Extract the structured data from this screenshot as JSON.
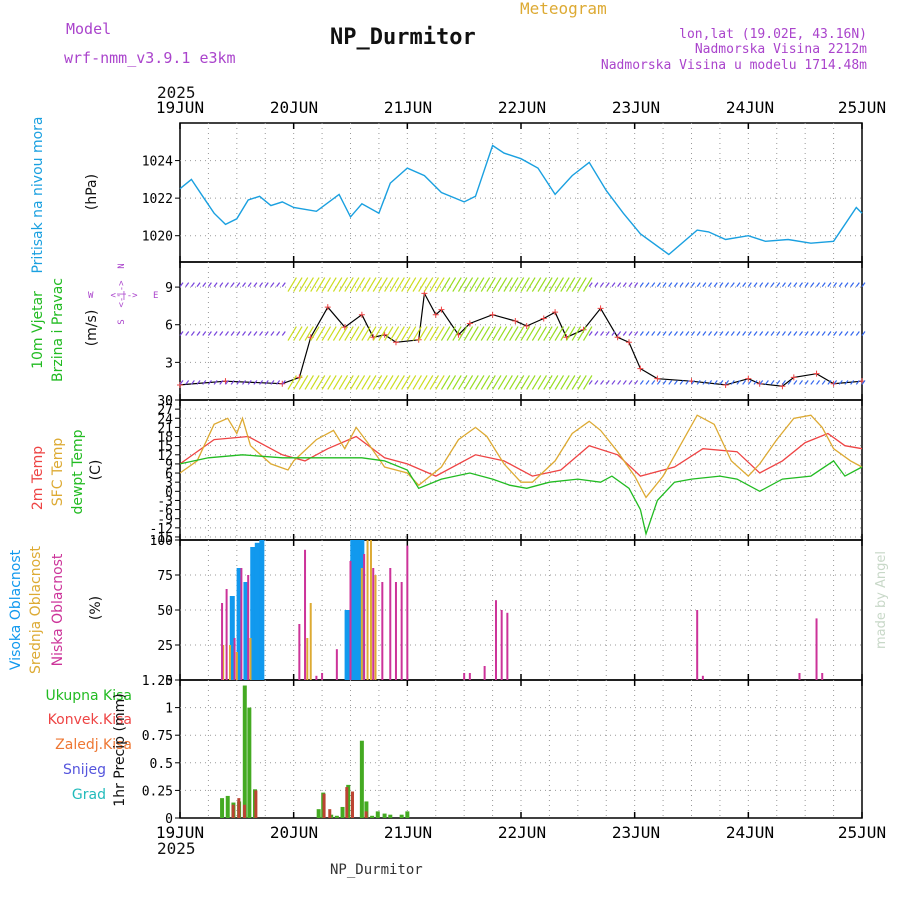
{
  "header": {
    "model_label": "Model",
    "model_name": "wrf-nmm_v3.9.1 e3km",
    "meteogram": "Meteogram",
    "station": "NP_Durmitor",
    "lonlat": "lon,lat (19.02E, 43.16N)",
    "altitude": "Nadmorska Visina 2212m",
    "model_altitude": "Nadmorska Visina u modelu 1714.48m",
    "year_top": "2025",
    "year_bottom": "2025",
    "footer_station": "NP_Durmitor",
    "credit": "made by Angel"
  },
  "dates": [
    "19JUN",
    "20JUN",
    "21JUN",
    "22JUN",
    "23JUN",
    "24JUN",
    "25JUN"
  ],
  "colors": {
    "pressure": "#1aa0e0",
    "green": "#22bb22",
    "red": "#ee4444",
    "orange": "#ddaa33",
    "violet": "#aa44cc",
    "magenta": "#cc3399",
    "blue": "#1199ee",
    "snow": "#5555dd",
    "grad": "#22bbbb"
  },
  "panels": {
    "pressure": {
      "label": "Pritisak na nivou mora",
      "unit": "(hPa)"
    },
    "wind": {
      "label1": "10m Vjetar",
      "label2": "Brzina i Pravac",
      "unit": "(m/s)",
      "compass_n": "N",
      "compass_w": "W",
      "compass_e": "E",
      "compass_s": "S",
      "compass_arrows": "<-|->",
      "compass_alpha": "α<-|->"
    },
    "temp": {
      "label1": "2m Temp",
      "label2": "SFC Temp",
      "label3": "dewpt Temp",
      "unit": "(C)"
    },
    "cloud": {
      "label1": "Visoka Oblacnost",
      "label2": "Srednja Oblacnost",
      "label3": "Niska Oblacnost",
      "unit": "(%)"
    },
    "precip": {
      "legend": [
        "Ukupna Kisa",
        "Konvek.Kisa",
        "Zaledj.Kisa",
        "Snijeg",
        "Grad"
      ],
      "unit": "1hr Precip (mm)"
    }
  },
  "chart_data": [
    {
      "type": "line",
      "title": "Pritisak na nivou mora",
      "ylabel": "(hPa)",
      "ylim": [
        1018.6,
        1026.0
      ],
      "yticks": [
        1020,
        1022,
        1024
      ],
      "x_days": [
        0.0,
        0.1,
        0.2,
        0.3,
        0.4,
        0.5,
        0.6,
        0.7,
        0.8,
        0.9,
        1.0,
        1.2,
        1.4,
        1.5,
        1.6,
        1.75,
        1.85,
        2.0,
        2.15,
        2.3,
        2.5,
        2.6,
        2.75,
        2.85,
        3.0,
        3.15,
        3.3,
        3.45,
        3.6,
        3.75,
        3.9,
        4.05,
        4.3,
        4.55,
        4.65,
        4.8,
        5.0,
        5.15,
        5.35,
        5.55,
        5.75,
        5.95,
        6.0
      ],
      "values": [
        1022.5,
        1023.0,
        1022.1,
        1021.2,
        1020.6,
        1020.9,
        1021.9,
        1022.1,
        1021.6,
        1021.8,
        1021.5,
        1021.3,
        1022.2,
        1021.0,
        1021.7,
        1021.2,
        1022.8,
        1023.6,
        1023.2,
        1022.3,
        1021.8,
        1022.1,
        1024.8,
        1024.4,
        1024.1,
        1023.6,
        1022.2,
        1023.2,
        1023.9,
        1022.4,
        1021.2,
        1020.1,
        1019.0,
        1020.3,
        1020.2,
        1019.8,
        1020.0,
        1019.7,
        1019.8,
        1019.6,
        1019.7,
        1021.5,
        1021.2
      ]
    },
    {
      "type": "line",
      "title": "10m Vjetar Brzina i Pravac",
      "ylabel": "(m/s)",
      "ylim": [
        0,
        11
      ],
      "yticks": [
        0,
        3,
        6,
        9
      ],
      "series": [
        {
          "name": "wind speed",
          "x_days": [
            0.0,
            0.4,
            0.9,
            1.05,
            1.15,
            1.3,
            1.45,
            1.6,
            1.7,
            1.8,
            1.9,
            2.1,
            2.15,
            2.25,
            2.3,
            2.45,
            2.55,
            2.75,
            2.95,
            3.05,
            3.2,
            3.3,
            3.4,
            3.55,
            3.7,
            3.85,
            3.95,
            4.05,
            4.2,
            4.5,
            4.8,
            5.0,
            5.1,
            5.3,
            5.4,
            5.6,
            5.75,
            6.0
          ],
          "values": [
            1.2,
            1.5,
            1.3,
            1.8,
            5.0,
            7.4,
            5.8,
            6.8,
            5.0,
            5.2,
            4.6,
            4.8,
            8.5,
            6.8,
            7.2,
            5.2,
            6.1,
            6.8,
            6.3,
            5.9,
            6.5,
            7.0,
            5.0,
            5.6,
            7.3,
            5.0,
            4.6,
            2.5,
            1.7,
            1.5,
            1.2,
            1.7,
            1.3,
            1.1,
            1.8,
            2.1,
            1.3,
            1.5
          ]
        }
      ]
    },
    {
      "type": "line",
      "title": "2m Temp / SFC Temp / dewpt Temp",
      "ylabel": "(C)",
      "ylim": [
        -16,
        30
      ],
      "yticks": [
        -15,
        -12,
        -9,
        -6,
        -3,
        0,
        3,
        6,
        9,
        12,
        15,
        18,
        21,
        24,
        27,
        30
      ],
      "series": [
        {
          "name": "2m Temp",
          "x_days": [
            0.0,
            0.3,
            0.6,
            0.9,
            1.1,
            1.3,
            1.55,
            1.8,
            2.0,
            2.25,
            2.6,
            2.85,
            3.1,
            3.35,
            3.6,
            3.85,
            4.05,
            4.35,
            4.6,
            4.9,
            5.1,
            5.3,
            5.5,
            5.7,
            5.85,
            6.0
          ],
          "values": [
            9,
            17,
            18,
            12,
            10,
            14,
            18,
            11,
            9,
            5,
            12,
            10,
            5,
            7,
            15,
            12,
            5,
            8,
            14,
            13,
            6,
            10,
            16,
            19,
            15,
            14
          ]
        },
        {
          "name": "SFC Temp",
          "x_days": [
            0.0,
            0.15,
            0.3,
            0.42,
            0.5,
            0.55,
            0.62,
            0.8,
            0.95,
            1.0,
            1.2,
            1.35,
            1.45,
            1.55,
            1.65,
            1.8,
            1.9,
            2.0,
            2.1,
            2.3,
            2.45,
            2.6,
            2.7,
            2.85,
            3.0,
            3.1,
            3.3,
            3.45,
            3.6,
            3.7,
            3.85,
            4.0,
            4.1,
            4.25,
            4.4,
            4.55,
            4.7,
            4.85,
            5.0,
            5.1,
            5.25,
            5.4,
            5.55,
            5.65,
            5.75,
            5.9,
            6.0
          ],
          "values": [
            6,
            10,
            22,
            24,
            19,
            24,
            15,
            9,
            7,
            10,
            17,
            20,
            14,
            21,
            16,
            8,
            7,
            6,
            2,
            8,
            17,
            21,
            18,
            9,
            3,
            3,
            10,
            19,
            23,
            20,
            13,
            5,
            -2,
            5,
            15,
            25,
            22,
            10,
            5,
            9,
            17,
            24,
            25,
            21,
            14,
            10,
            8
          ]
        },
        {
          "name": "dewpt Temp",
          "x_days": [
            0.0,
            0.25,
            0.55,
            0.9,
            1.2,
            1.4,
            1.6,
            1.8,
            2.0,
            2.1,
            2.3,
            2.55,
            2.75,
            2.9,
            3.05,
            3.25,
            3.5,
            3.7,
            3.8,
            3.95,
            4.05,
            4.1,
            4.2,
            4.35,
            4.5,
            4.75,
            4.9,
            5.1,
            5.3,
            5.55,
            5.75,
            5.85,
            6.0
          ],
          "values": [
            9,
            11,
            12,
            11,
            11,
            11,
            11,
            10,
            7,
            1,
            4,
            6,
            4,
            2,
            1,
            3,
            4,
            3,
            5,
            1,
            -6,
            -14,
            -3,
            3,
            4,
            5,
            4,
            0,
            4,
            5,
            10,
            5,
            8
          ]
        }
      ]
    },
    {
      "type": "bar",
      "title": "Visoka / Srednja / Niska Oblacnost",
      "ylabel": "(%)",
      "ylim": [
        0,
        100
      ],
      "yticks": [
        0,
        25,
        50,
        75,
        100
      ],
      "series": [
        {
          "name": "Visoka Oblacnost",
          "x_days": [
            0.46,
            0.52,
            0.58,
            0.64,
            0.68,
            0.72,
            1.47,
            1.52,
            1.56,
            1.6
          ],
          "values": [
            60,
            80,
            70,
            95,
            98,
            100,
            50,
            100,
            100,
            100
          ]
        },
        {
          "name": "Srednja Oblacnost",
          "x_days": [
            0.38,
            0.44,
            0.5,
            0.62,
            1.12,
            1.15,
            1.6,
            1.65,
            1.68,
            1.72
          ],
          "values": [
            25,
            25,
            20,
            30,
            30,
            55,
            80,
            100,
            100,
            75
          ]
        },
        {
          "name": "Niska Oblacnost",
          "x_days": [
            0.37,
            0.41,
            0.48,
            0.54,
            0.6,
            1.05,
            1.1,
            1.2,
            1.25,
            1.38,
            1.5,
            1.62,
            1.7,
            1.78,
            1.85,
            1.9,
            1.95,
            2.0,
            2.5,
            2.55,
            2.68,
            2.78,
            2.83,
            2.88,
            4.55,
            4.6,
            5.45,
            5.6,
            5.65
          ],
          "values": [
            55,
            65,
            30,
            80,
            75,
            40,
            93,
            3,
            5,
            22,
            85,
            90,
            80,
            70,
            80,
            70,
            70,
            96,
            5,
            5,
            10,
            57,
            50,
            48,
            50,
            3,
            5,
            44,
            5
          ]
        }
      ]
    },
    {
      "type": "bar",
      "title": "1hr Precip",
      "ylabel": "1hr Precip (mm)",
      "ylim": [
        0,
        1.25
      ],
      "yticks": [
        0,
        0.25,
        0.5,
        0.75,
        1,
        1.25
      ],
      "series": [
        {
          "name": "Ukupna Kisa",
          "x_days": [
            0.37,
            0.42,
            0.47,
            0.52,
            0.57,
            0.61,
            0.66,
            1.22,
            1.26,
            1.33,
            1.38,
            1.43,
            1.48,
            1.6,
            1.64,
            1.69,
            1.74,
            1.8,
            1.85,
            1.95,
            2.0
          ],
          "values": [
            0.18,
            0.2,
            0.14,
            0.15,
            1.2,
            1.0,
            0.26,
            0.08,
            0.23,
            0.03,
            0.02,
            0.1,
            0.3,
            0.7,
            0.15,
            0.02,
            0.06,
            0.04,
            0.03,
            0.03,
            0.06
          ]
        },
        {
          "name": "Konvek.Kisa",
          "x_days": [
            0.45,
            0.5,
            0.55,
            0.65,
            1.25,
            1.3,
            1.45,
            1.5,
            1.62
          ],
          "values": [
            0.12,
            0.18,
            0.12,
            0.25,
            0.22,
            0.08,
            0.28,
            0.24,
            0.06
          ]
        }
      ]
    }
  ]
}
